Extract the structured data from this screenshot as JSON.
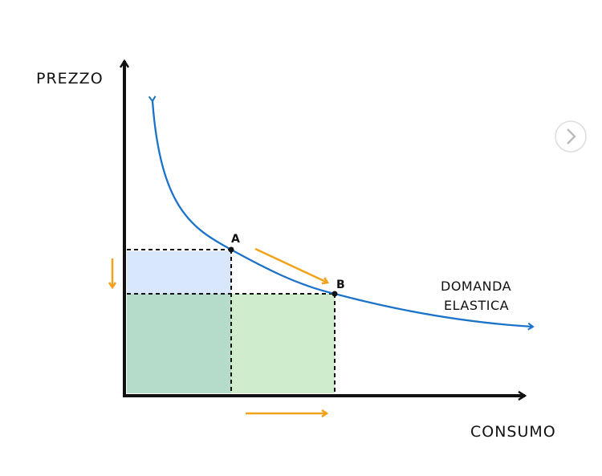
{
  "axes": {
    "y_label": "PREZZO",
    "x_label": "CONSUMO"
  },
  "points": [
    {
      "label": "A"
    },
    {
      "label": "B"
    }
  ],
  "curve": {
    "label_lines": [
      "DOMANDA",
      "ELASTICA"
    ]
  }
}
